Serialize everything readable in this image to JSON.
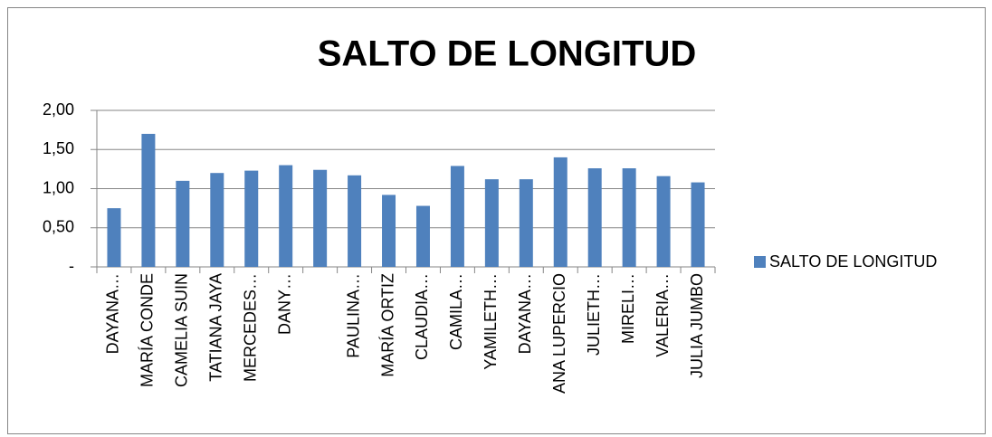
{
  "chart_data": {
    "type": "bar",
    "title": "SALTO DE LONGITUD",
    "categories": [
      "DAYANA…",
      "MARÍA CONDE",
      "CAMELIA SUIN",
      "TATIANA JAYA",
      "MERCEDES…",
      "DANY…",
      null,
      "PAULINA…",
      "MARÍA ORTIZ",
      "CLAUDIA…",
      "CAMILA…",
      "YAMILETH…",
      "DAYANA…",
      "ANA LUPERCIO",
      "JULIETH…",
      "MIRELI…",
      "VALERIA…",
      "JULIA JUMBO"
    ],
    "series": [
      {
        "name": "SALTO DE LONGITUD",
        "color": "#4f81bd",
        "values": [
          0.75,
          1.7,
          1.1,
          1.2,
          1.23,
          1.3,
          1.24,
          1.17,
          0.92,
          0.78,
          1.29,
          1.12,
          1.12,
          1.4,
          1.26,
          1.26,
          1.16,
          1.08
        ]
      }
    ],
    "ylim": [
      0,
      2
    ],
    "yticks": [
      {
        "value": 0,
        "label": "-"
      },
      {
        "value": 0.5,
        "label": "0,50"
      },
      {
        "value": 1,
        "label": "1,00"
      },
      {
        "value": 1.5,
        "label": "1,50"
      },
      {
        "value": 2,
        "label": "2,00"
      }
    ],
    "grid": true,
    "legend": "right"
  }
}
